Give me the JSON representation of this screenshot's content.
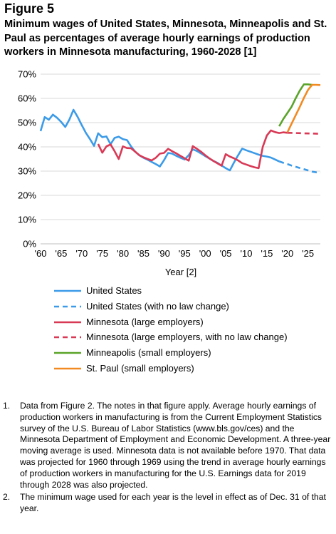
{
  "figure": {
    "label": "Figure 5",
    "title": "Minimum wages of United States, Minnesota, Minneapolis and St. Paul as percentages of average hourly earnings of production workers in Minnesota manufacturing, 1960-2028 [1]"
  },
  "chart_data": {
    "type": "line",
    "xlabel": "Year [2]",
    "ylabel": "",
    "xlim": [
      1960,
      2028
    ],
    "ylim": [
      0,
      70
    ],
    "y_ticks": [
      "0%",
      "10%",
      "20%",
      "30%",
      "40%",
      "50%",
      "60%",
      "70%"
    ],
    "x_ticks": [
      "'60",
      "'65",
      "'70",
      "'75",
      "'80",
      "'85",
      "'90",
      "'95",
      "'00",
      "'05",
      "'10",
      "'15",
      "'20",
      "'25"
    ],
    "x_tick_years": [
      1960,
      1965,
      1970,
      1975,
      1980,
      1985,
      1990,
      1995,
      2000,
      2005,
      2010,
      2015,
      2020,
      2025
    ],
    "grid": "horizontal",
    "legend_position": "bottom",
    "series": [
      {
        "name": "United States",
        "color": "#3C9BE8",
        "dash": "solid",
        "points": [
          [
            1960,
            46.5
          ],
          [
            1961,
            52.3
          ],
          [
            1962,
            51.2
          ],
          [
            1963,
            53.3
          ],
          [
            1964,
            52
          ],
          [
            1965,
            50.3
          ],
          [
            1966,
            48.2
          ],
          [
            1967,
            51.3
          ],
          [
            1968,
            55.3
          ],
          [
            1969,
            52.4
          ],
          [
            1970,
            49
          ],
          [
            1971,
            45.8
          ],
          [
            1972,
            43.2
          ],
          [
            1973,
            40.4
          ],
          [
            1974,
            45.6
          ],
          [
            1975,
            44
          ],
          [
            1976,
            44.3
          ],
          [
            1977,
            41.1
          ],
          [
            1978,
            43.7
          ],
          [
            1979,
            44.2
          ],
          [
            1980,
            43.2
          ],
          [
            1981,
            42.8
          ],
          [
            1982,
            40.2
          ],
          [
            1983,
            38
          ],
          [
            1984,
            36.5
          ],
          [
            1985,
            35.5
          ],
          [
            1986,
            34.7
          ],
          [
            1987,
            33.8
          ],
          [
            1988,
            32.9
          ],
          [
            1989,
            31.9
          ],
          [
            1990,
            34.5
          ],
          [
            1991,
            37.5
          ],
          [
            1992,
            37.2
          ],
          [
            1993,
            36.3
          ],
          [
            1994,
            35.5
          ],
          [
            1995,
            34.8
          ],
          [
            1996,
            36.6
          ],
          [
            1997,
            39
          ],
          [
            1998,
            38.3
          ],
          [
            1999,
            37.3
          ],
          [
            2000,
            36.2
          ],
          [
            2001,
            35.2
          ],
          [
            2002,
            34.2
          ],
          [
            2003,
            33.4
          ],
          [
            2004,
            32.3
          ],
          [
            2005,
            31.2
          ],
          [
            2006,
            30.3
          ],
          [
            2007,
            33.5
          ],
          [
            2008,
            36.5
          ],
          [
            2009,
            39.3
          ],
          [
            2010,
            38.6
          ],
          [
            2011,
            38
          ],
          [
            2012,
            37.4
          ],
          [
            2013,
            36.8
          ],
          [
            2014,
            36.3
          ],
          [
            2015,
            36
          ],
          [
            2016,
            35.6
          ],
          [
            2017,
            34.8
          ],
          [
            2018,
            34
          ]
        ]
      },
      {
        "name": "United States (with no law change)",
        "color": "#3C9BE8",
        "dash": "dashed",
        "points": [
          [
            2018,
            34
          ],
          [
            2019,
            33.4
          ],
          [
            2020,
            32.9
          ],
          [
            2021,
            32.3
          ],
          [
            2022,
            31.8
          ],
          [
            2023,
            31.3
          ],
          [
            2024,
            30.8
          ],
          [
            2025,
            30.3
          ],
          [
            2026,
            29.8
          ],
          [
            2027,
            29.5
          ],
          [
            2028,
            29.3
          ]
        ]
      },
      {
        "name": "Minnesota (large employers)",
        "color": "#D83A56",
        "dash": "solid",
        "points": [
          [
            1974,
            41.2
          ],
          [
            1975,
            37.6
          ],
          [
            1976,
            40.2
          ],
          [
            1977,
            41
          ],
          [
            1978,
            38.2
          ],
          [
            1979,
            35
          ],
          [
            1980,
            40.2
          ],
          [
            1981,
            39.5
          ],
          [
            1982,
            39.4
          ],
          [
            1983,
            38
          ],
          [
            1984,
            36.6
          ],
          [
            1985,
            35.7
          ],
          [
            1986,
            35
          ],
          [
            1987,
            34.4
          ],
          [
            1988,
            35.5
          ],
          [
            1989,
            37.2
          ],
          [
            1990,
            37.5
          ],
          [
            1991,
            39.2
          ],
          [
            1992,
            38.2
          ],
          [
            1993,
            37.3
          ],
          [
            1994,
            36.3
          ],
          [
            1995,
            35.3
          ],
          [
            1996,
            34.3
          ],
          [
            1997,
            40.3
          ],
          [
            1998,
            39.2
          ],
          [
            1999,
            38
          ],
          [
            2000,
            36.6
          ],
          [
            2001,
            35.3
          ],
          [
            2002,
            34.2
          ],
          [
            2003,
            33.2
          ],
          [
            2004,
            32.2
          ],
          [
            2005,
            37
          ],
          [
            2006,
            36
          ],
          [
            2007,
            35.3
          ],
          [
            2008,
            34.4
          ],
          [
            2009,
            33.3
          ],
          [
            2010,
            32.7
          ],
          [
            2011,
            32.1
          ],
          [
            2012,
            31.6
          ],
          [
            2013,
            31.2
          ],
          [
            2014,
            40
          ],
          [
            2015,
            44.7
          ],
          [
            2016,
            46.8
          ],
          [
            2017,
            46.1
          ],
          [
            2018,
            45.7
          ],
          [
            2019,
            46
          ],
          [
            2020,
            45.8
          ]
        ]
      },
      {
        "name": "Minnesota (large employers, with no law change)",
        "color": "#D83A56",
        "dash": "dashed",
        "points": [
          [
            2020,
            45.8
          ],
          [
            2022,
            45.7
          ],
          [
            2024,
            45.6
          ],
          [
            2026,
            45.5
          ],
          [
            2028,
            45.4
          ]
        ]
      },
      {
        "name": "Minneapolis (small employers)",
        "color": "#5BA42A",
        "dash": "solid",
        "points": [
          [
            2018,
            48.5
          ],
          [
            2019,
            51.5
          ],
          [
            2020,
            54
          ],
          [
            2021,
            56.5
          ],
          [
            2022,
            60
          ],
          [
            2023,
            63.2
          ],
          [
            2024,
            65.8
          ],
          [
            2025,
            65.8
          ],
          [
            2026,
            65.6
          ]
        ]
      },
      {
        "name": "St. Paul (small employers)",
        "color": "#F28A22",
        "dash": "solid",
        "points": [
          [
            2020,
            46
          ],
          [
            2021,
            49.5
          ],
          [
            2022,
            53
          ],
          [
            2023,
            56.5
          ],
          [
            2024,
            60.2
          ],
          [
            2025,
            63.5
          ],
          [
            2026,
            65.6
          ],
          [
            2027,
            65.6
          ],
          [
            2028,
            65.5
          ]
        ]
      }
    ]
  },
  "notes": [
    {
      "num": "1.",
      "text": "Data from Figure 2. The notes in that figure apply. Average hourly earnings of production workers in manufacturing is from the Current Employment Statistics survey of the U.S. Bureau of Labor Statistics (www.bls.gov/ces) and the Minnesota Department of Employment and Economic Development. A three-year moving average is used. Minnesota data is not available before 1970. That data was projected for 1960 through 1969 using the trend in average hourly earnings of production workers in manufacturing for the U.S. Earnings data for 2019 through 2028 was also projected."
    },
    {
      "num": "2.",
      "text": "The minimum wage used for each year is the level in effect as of Dec. 31 of that year."
    }
  ]
}
